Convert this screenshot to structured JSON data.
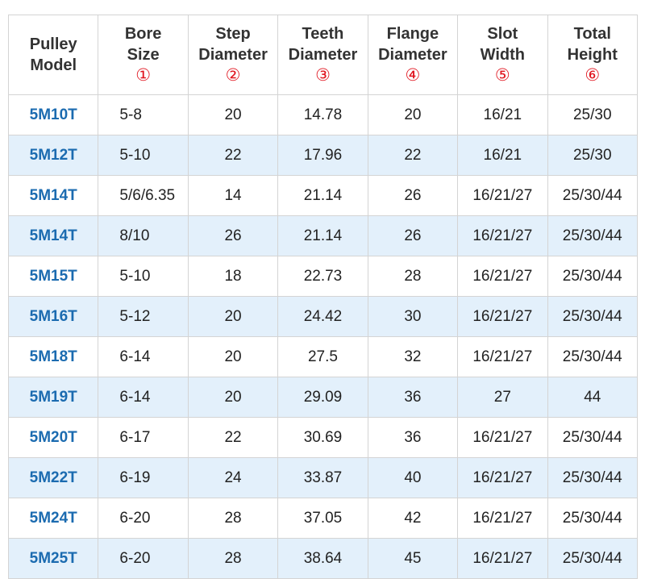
{
  "headers": [
    {
      "l1": "Pulley",
      "l2": "Model",
      "n": ""
    },
    {
      "l1": "Bore",
      "l2": "Size",
      "n": "①"
    },
    {
      "l1": "Step",
      "l2": "Diameter",
      "n": "②"
    },
    {
      "l1": "Teeth",
      "l2": "Diameter",
      "n": "③"
    },
    {
      "l1": "Flange",
      "l2": "Diameter",
      "n": "④"
    },
    {
      "l1": "Slot",
      "l2": "Width",
      "n": "⑤"
    },
    {
      "l1": "Total",
      "l2": "Height",
      "n": "⑥"
    }
  ],
  "rows": [
    [
      "5M10T",
      "5-8",
      "20",
      "14.78",
      "20",
      "16/21",
      "25/30"
    ],
    [
      "5M12T",
      "5-10",
      "22",
      "17.96",
      "22",
      "16/21",
      "25/30"
    ],
    [
      "5M14T",
      "5/6/6.35",
      "14",
      "21.14",
      "26",
      "16/21/27",
      "25/30/44"
    ],
    [
      "5M14T",
      "8/10",
      "26",
      "21.14",
      "26",
      "16/21/27",
      "25/30/44"
    ],
    [
      "5M15T",
      "5-10",
      "18",
      "22.73",
      "28",
      "16/21/27",
      "25/30/44"
    ],
    [
      "5M16T",
      "5-12",
      "20",
      "24.42",
      "30",
      "16/21/27",
      "25/30/44"
    ],
    [
      "5M18T",
      "6-14",
      "20",
      "27.5",
      "32",
      "16/21/27",
      "25/30/44"
    ],
    [
      "5M19T",
      "6-14",
      "20",
      "29.09",
      "36",
      "27",
      "44"
    ],
    [
      "5M20T",
      "6-17",
      "22",
      "30.69",
      "36",
      "16/21/27",
      "25/30/44"
    ],
    [
      "5M22T",
      "6-19",
      "24",
      "33.87",
      "40",
      "16/21/27",
      "25/30/44"
    ],
    [
      "5M24T",
      "6-20",
      "28",
      "37.05",
      "42",
      "16/21/27",
      "25/30/44"
    ],
    [
      "5M25T",
      "6-20",
      "28",
      "38.64",
      "45",
      "16/21/27",
      "25/30/44"
    ]
  ]
}
